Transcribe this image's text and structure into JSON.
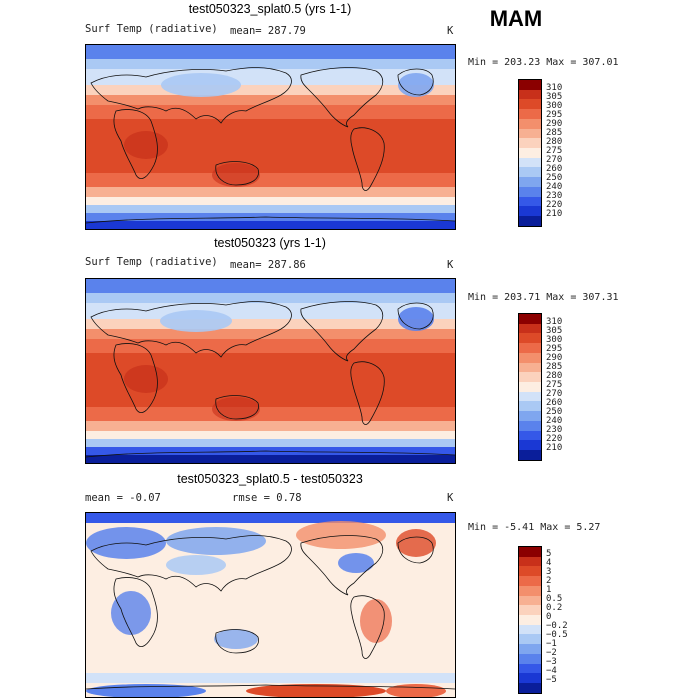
{
  "season": "MAM",
  "panels": [
    {
      "title": "test050323_splat0.5 (yrs 1-1)",
      "subtitle_left": "Surf Temp (radiative)",
      "subtitle_mid": "mean=  287.79",
      "units": "K",
      "min_max": "Min = 203.23  Max = 307.01",
      "colorbar_labels": [
        "310",
        "305",
        "300",
        "295",
        "290",
        "285",
        "280",
        "275",
        "270",
        "260",
        "250",
        "240",
        "230",
        "220",
        "210"
      ],
      "colors": [
        "#8b0000",
        "#c8301a",
        "#dd4a28",
        "#ec6a48",
        "#f38f6c",
        "#f7b092",
        "#fbd2bd",
        "#fdeee2",
        "#d2e2f8",
        "#aac9f4",
        "#7fa6ef",
        "#5a82ec",
        "#3558e8",
        "#1a38d4",
        "#0a1e9a"
      ]
    },
    {
      "title": "test050323 (yrs 1-1)",
      "subtitle_left": "Surf Temp (radiative)",
      "subtitle_mid": "mean=  287.86",
      "units": "K",
      "min_max": "Min = 203.71  Max = 307.31",
      "colorbar_labels": [
        "310",
        "305",
        "300",
        "295",
        "290",
        "285",
        "280",
        "275",
        "270",
        "260",
        "250",
        "240",
        "230",
        "220",
        "210"
      ],
      "colors": [
        "#8b0000",
        "#c8301a",
        "#dd4a28",
        "#ec6a48",
        "#f38f6c",
        "#f7b092",
        "#fbd2bd",
        "#fdeee2",
        "#d2e2f8",
        "#aac9f4",
        "#7fa6ef",
        "#5a82ec",
        "#3558e8",
        "#1a38d4",
        "#0a1e9a"
      ]
    },
    {
      "title": "test050323_splat0.5 - test050323",
      "subtitle_left": "mean =   -0.07",
      "subtitle_mid": "rmse =    0.78",
      "units": "K",
      "min_max": "Min =  -5.41  Max =   5.27",
      "colorbar_labels": [
        "5",
        "4",
        "3",
        "2",
        "1",
        "0.5",
        "0.2",
        "0",
        "−0.2",
        "−0.5",
        "−1",
        "−2",
        "−3",
        "−4",
        "−5"
      ],
      "colors": [
        "#8b0000",
        "#c8301a",
        "#dd4a28",
        "#ec6a48",
        "#f38f6c",
        "#f7b092",
        "#fbd2bd",
        "#fdeee2",
        "#d2e2f8",
        "#aac9f4",
        "#7fa6ef",
        "#5a82ec",
        "#3558e8",
        "#1a38d4",
        "#0a1e9a"
      ]
    }
  ]
}
